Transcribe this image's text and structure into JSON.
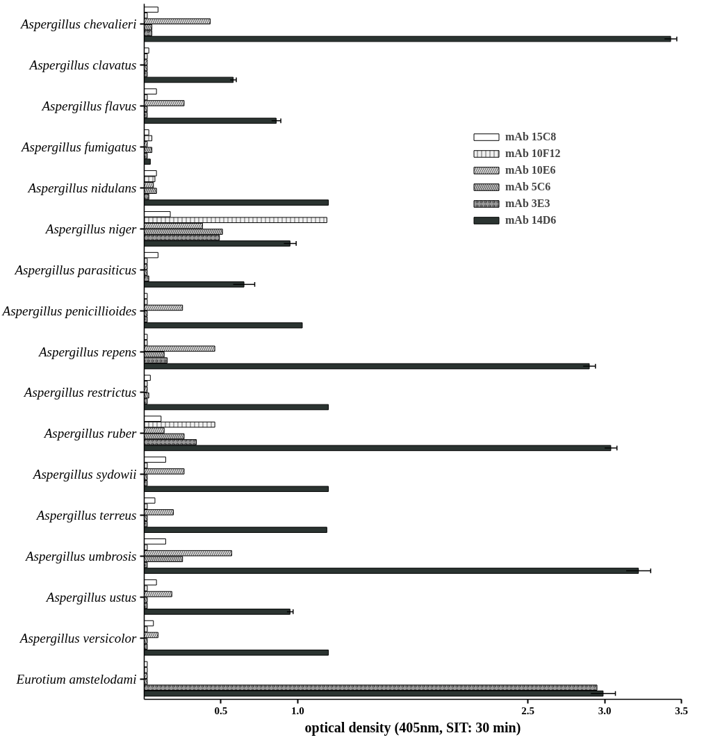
{
  "chart_data": {
    "type": "bar",
    "orientation": "horizontal",
    "categories": [
      "Aspergillus chevalieri",
      "Aspergillus clavatus",
      "Aspergillus flavus",
      "Aspergillus fumigatus",
      "Aspergillus nidulans",
      "Aspergillus niger",
      "Aspergillus parasiticus",
      "Aspergillus penicillioides",
      "Aspergillus repens",
      "Aspergillus restrictus",
      "Aspergillus ruber",
      "Aspergillus sydowii",
      "Aspergillus terreus",
      "Aspergillus umbrosis",
      "Aspergillus ustus",
      "Aspergillus versicolor",
      "Eurotium amstelodami"
    ],
    "series": [
      {
        "name": "mAb 15C8",
        "color": "#ffffff",
        "values": [
          0.09,
          0.03,
          0.08,
          0.03,
          0.08,
          0.17,
          0.09,
          0.02,
          0.02,
          0.04,
          0.11,
          0.14,
          0.07,
          0.14,
          0.08,
          0.06,
          0.02
        ]
      },
      {
        "name": "mAb 10F12",
        "color": "#f0f0f0",
        "values": [
          0.02,
          0.02,
          0.02,
          0.05,
          0.07,
          1.19,
          0.02,
          0.02,
          0.02,
          0.02,
          0.46,
          0.02,
          0.02,
          0.02,
          0.02,
          0.02,
          0.02
        ]
      },
      {
        "name": "mAb 10E6",
        "color": "#d8d8d8",
        "values": [
          0.43,
          0.02,
          0.26,
          0.02,
          0.06,
          0.38,
          0.02,
          0.25,
          0.46,
          0.02,
          0.13,
          0.26,
          0.19,
          0.57,
          0.18,
          0.09,
          0.02
        ]
      },
      {
        "name": "mAb 5C6",
        "color": "#bcbcbc",
        "values": [
          0.05,
          0.02,
          0.02,
          0.05,
          0.08,
          0.51,
          0.02,
          0.02,
          0.13,
          0.03,
          0.26,
          0.02,
          0.02,
          0.25,
          0.02,
          0.02,
          0.02
        ]
      },
      {
        "name": "mAb 3E3",
        "color": "#9a9a9a",
        "values": [
          0.05,
          0.02,
          0.02,
          0.02,
          0.03,
          0.49,
          0.03,
          0.02,
          0.15,
          0.02,
          0.34,
          0.02,
          0.02,
          0.02,
          0.02,
          0.02,
          2.95
        ]
      },
      {
        "name": "mAb 14D6",
        "color": "#2b3431",
        "values": [
          3.43,
          0.58,
          0.86,
          0.04,
          1.2,
          0.95,
          0.65,
          1.03,
          2.9,
          1.2,
          3.04,
          1.2,
          1.19,
          3.22,
          0.95,
          1.2,
          2.99
        ],
        "errors": [
          0.04,
          0.02,
          0.03,
          null,
          null,
          0.04,
          0.07,
          null,
          0.04,
          null,
          0.04,
          null,
          null,
          0.08,
          0.02,
          null,
          0.08
        ]
      }
    ],
    "xlim": [
      0,
      3.5
    ],
    "xticks": [
      0.5,
      {
        "value": 1.0,
        "label": "1.0"
      },
      2.5,
      {
        "value": 3.0,
        "label": "3.0"
      },
      3.5
    ],
    "xlabel": "optical density (405nm, SIT: 30 min)",
    "legend": "top right",
    "grid": false
  }
}
